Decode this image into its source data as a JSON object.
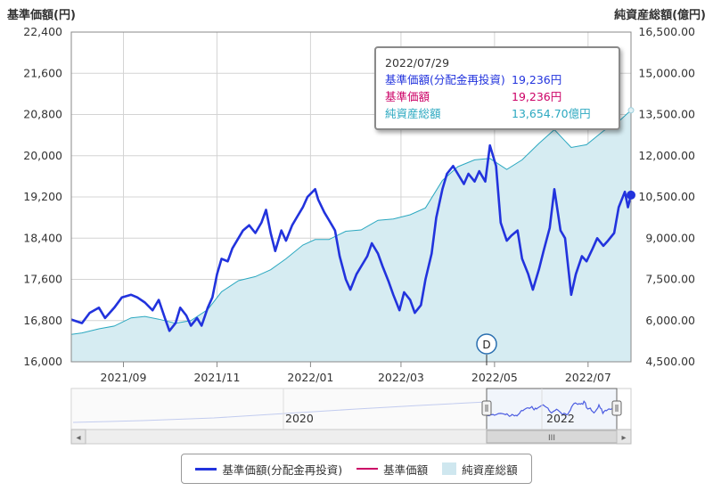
{
  "left_axis_title": "基準価額(円)",
  "right_axis_title": "純資産総額(億円)",
  "tooltip": {
    "date": "2022/07/29",
    "rows": [
      {
        "label": "基準価額(分配金再投資)",
        "value": "19,236円",
        "color": "#2233dd"
      },
      {
        "label": "基準価額",
        "value": "19,236円",
        "color": "#cc0066"
      },
      {
        "label": "純資産総額",
        "value": "13,654.70億円",
        "color": "#2ba8c0"
      }
    ]
  },
  "event_marker": "D",
  "navigator": {
    "year_labels": [
      "2020",
      "2022"
    ],
    "scrollbar_grip": "III",
    "left_arrow": "◂",
    "right_arrow": "▸"
  },
  "legend": [
    {
      "label": "基準価額(分配金再投資)",
      "color": "#2233dd",
      "kind": "line"
    },
    {
      "label": "基準価額",
      "color": "#cc0066",
      "kind": "line"
    },
    {
      "label": "純資産総額",
      "color": "#cfe7ef",
      "kind": "area"
    }
  ],
  "chart_data": {
    "type": "line",
    "x_labels": [
      "2021/09",
      "2021/11",
      "2022/01",
      "2022/03",
      "2022/05",
      "2022/07"
    ],
    "y_left": {
      "ticks": [
        "16,000",
        "16,800",
        "17,600",
        "18,400",
        "19,200",
        "20,000",
        "20,800",
        "21,600",
        "22,400"
      ],
      "ylim": [
        16000,
        22400
      ]
    },
    "y_right": {
      "ticks": [
        "4,500.00",
        "6,000.00",
        "7,500.00",
        "9,000.00",
        "10,500.00",
        "12,000.00",
        "13,500.00",
        "15,000.00",
        "16,500.00"
      ],
      "ylim": [
        4500,
        16500
      ]
    },
    "x_range": [
      "2021/07/29",
      "2022/07/29"
    ],
    "series": [
      {
        "name": "基準価額(分配金再投資)",
        "axis": "left",
        "color": "#2233dd",
        "points": [
          [
            "2021/07/29",
            16820
          ],
          [
            "2021/08/05",
            16750
          ],
          [
            "2021/08/10",
            16950
          ],
          [
            "2021/08/16",
            17050
          ],
          [
            "2021/08/20",
            16850
          ],
          [
            "2021/08/26",
            17050
          ],
          [
            "2021/08/31",
            17250
          ],
          [
            "2021/09/06",
            17300
          ],
          [
            "2021/09/10",
            17250
          ],
          [
            "2021/09/15",
            17150
          ],
          [
            "2021/09/20",
            17000
          ],
          [
            "2021/09/24",
            17200
          ],
          [
            "2021/09/28",
            16850
          ],
          [
            "2021/10/01",
            16600
          ],
          [
            "2021/10/05",
            16750
          ],
          [
            "2021/10/08",
            17050
          ],
          [
            "2021/10/12",
            16900
          ],
          [
            "2021/10/15",
            16700
          ],
          [
            "2021/10/19",
            16850
          ],
          [
            "2021/10/22",
            16700
          ],
          [
            "2021/10/26",
            17050
          ],
          [
            "2021/10/29",
            17250
          ],
          [
            "2021/11/01",
            17700
          ],
          [
            "2021/11/04",
            18000
          ],
          [
            "2021/11/08",
            17950
          ],
          [
            "2021/11/11",
            18200
          ],
          [
            "2021/11/15",
            18400
          ],
          [
            "2021/11/18",
            18550
          ],
          [
            "2021/11/22",
            18650
          ],
          [
            "2021/11/26",
            18500
          ],
          [
            "2021/11/30",
            18700
          ],
          [
            "2021/12/03",
            18950
          ],
          [
            "2021/12/06",
            18500
          ],
          [
            "2021/12/09",
            18150
          ],
          [
            "2021/12/13",
            18550
          ],
          [
            "2021/12/16",
            18350
          ],
          [
            "2021/12/20",
            18650
          ],
          [
            "2021/12/23",
            18800
          ],
          [
            "2021/12/27",
            19000
          ],
          [
            "2021/12/30",
            19200
          ],
          [
            "2022/01/04",
            19350
          ],
          [
            "2022/01/06",
            19150
          ],
          [
            "2022/01/10",
            18900
          ],
          [
            "2022/01/13",
            18750
          ],
          [
            "2022/01/17",
            18550
          ],
          [
            "2022/01/20",
            18050
          ],
          [
            "2022/01/24",
            17600
          ],
          [
            "2022/01/27",
            17400
          ],
          [
            "2022/01/31",
            17700
          ],
          [
            "2022/02/03",
            17850
          ],
          [
            "2022/02/07",
            18050
          ],
          [
            "2022/02/10",
            18300
          ],
          [
            "2022/02/14",
            18100
          ],
          [
            "2022/02/17",
            17850
          ],
          [
            "2022/02/21",
            17550
          ],
          [
            "2022/02/24",
            17300
          ],
          [
            "2022/02/28",
            17000
          ],
          [
            "2022/03/03",
            17350
          ],
          [
            "2022/03/07",
            17200
          ],
          [
            "2022/03/10",
            16950
          ],
          [
            "2022/03/14",
            17100
          ],
          [
            "2022/03/17",
            17600
          ],
          [
            "2022/03/21",
            18100
          ],
          [
            "2022/03/24",
            18800
          ],
          [
            "2022/03/28",
            19350
          ],
          [
            "2022/03/31",
            19650
          ],
          [
            "2022/04/04",
            19800
          ],
          [
            "2022/04/07",
            19650
          ],
          [
            "2022/04/11",
            19450
          ],
          [
            "2022/04/14",
            19650
          ],
          [
            "2022/04/18",
            19500
          ],
          [
            "2022/04/21",
            19700
          ],
          [
            "2022/04/25",
            19500
          ],
          [
            "2022/04/28",
            20200
          ],
          [
            "2022/05/02",
            19800
          ],
          [
            "2022/05/05",
            18700
          ],
          [
            "2022/05/09",
            18350
          ],
          [
            "2022/05/12",
            18450
          ],
          [
            "2022/05/16",
            18550
          ],
          [
            "2022/05/19",
            18000
          ],
          [
            "2022/05/23",
            17700
          ],
          [
            "2022/05/26",
            17400
          ],
          [
            "2022/05/30",
            17800
          ],
          [
            "2022/06/02",
            18150
          ],
          [
            "2022/06/06",
            18600
          ],
          [
            "2022/06/09",
            19350
          ],
          [
            "2022/06/13",
            18550
          ],
          [
            "2022/06/16",
            18400
          ],
          [
            "2022/06/20",
            17300
          ],
          [
            "2022/06/23",
            17700
          ],
          [
            "2022/06/27",
            18050
          ],
          [
            "2022/06/30",
            17950
          ],
          [
            "2022/07/04",
            18200
          ],
          [
            "2022/07/07",
            18400
          ],
          [
            "2022/07/11",
            18250
          ],
          [
            "2022/07/14",
            18350
          ],
          [
            "2022/07/18",
            18500
          ],
          [
            "2022/07/21",
            19000
          ],
          [
            "2022/07/25",
            19300
          ],
          [
            "2022/07/27",
            19000
          ],
          [
            "2022/07/29",
            19236
          ]
        ]
      },
      {
        "name": "基準価額",
        "axis": "left",
        "color": "#cc0066",
        "points": []
      },
      {
        "name": "純資産総額",
        "axis": "right",
        "color": "#2ba8c0",
        "fill": "#d6ecf2",
        "points": [
          [
            "2021/07/29",
            5500
          ],
          [
            "2021/08/05",
            5550
          ],
          [
            "2021/08/16",
            5700
          ],
          [
            "2021/08/26",
            5800
          ],
          [
            "2021/09/06",
            6100
          ],
          [
            "2021/09/15",
            6150
          ],
          [
            "2021/09/24",
            6050
          ],
          [
            "2021/10/05",
            5900
          ],
          [
            "2021/10/15",
            6000
          ],
          [
            "2021/10/26",
            6400
          ],
          [
            "2021/11/04",
            7050
          ],
          [
            "2021/11/15",
            7450
          ],
          [
            "2021/11/26",
            7600
          ],
          [
            "2021/12/06",
            7850
          ],
          [
            "2021/12/16",
            8250
          ],
          [
            "2021/12/27",
            8750
          ],
          [
            "2022/01/04",
            8950
          ],
          [
            "2022/01/13",
            8950
          ],
          [
            "2022/01/24",
            9250
          ],
          [
            "2022/02/03",
            9300
          ],
          [
            "2022/02/14",
            9650
          ],
          [
            "2022/02/24",
            9700
          ],
          [
            "2022/03/07",
            9850
          ],
          [
            "2022/03/17",
            10100
          ],
          [
            "2022/03/28",
            11100
          ],
          [
            "2022/04/07",
            11600
          ],
          [
            "2022/04/18",
            11850
          ],
          [
            "2022/04/28",
            11900
          ],
          [
            "2022/05/09",
            11500
          ],
          [
            "2022/05/19",
            11850
          ],
          [
            "2022/05/30",
            12450
          ],
          [
            "2022/06/09",
            12950
          ],
          [
            "2022/06/20",
            12300
          ],
          [
            "2022/06/30",
            12400
          ],
          [
            "2022/07/11",
            12900
          ],
          [
            "2022/07/21",
            13250
          ],
          [
            "2022/07/29",
            13654.7
          ]
        ]
      }
    ]
  }
}
